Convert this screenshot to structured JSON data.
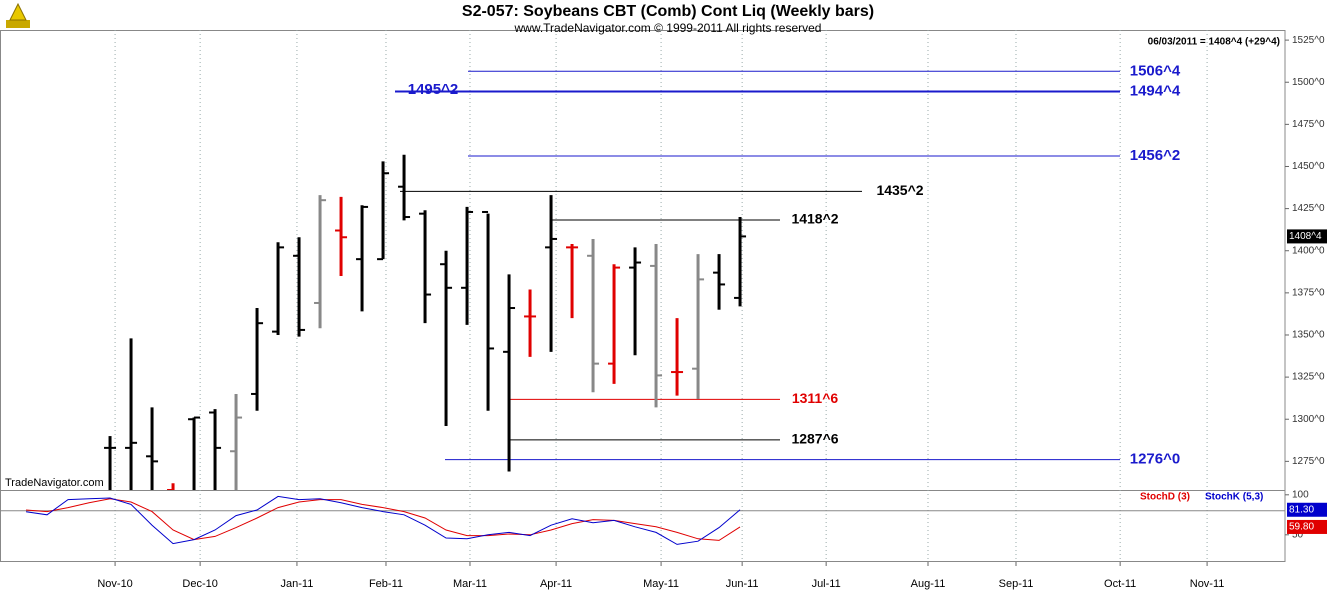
{
  "chart_data": {
    "type": "ohlc",
    "title": "S2-057:  Soybeans CBT (Comb) Cont Liq  (Weekly bars)",
    "subtitle": "www.TradeNavigator.com © 1999-2011 All rights reserved",
    "watermark": "TradeNavigator.com",
    "header_note": "06/03/2011 = 1408^4 (+29^4)",
    "categories": [
      null,
      null,
      null,
      null,
      null,
      null,
      null,
      null,
      null,
      null,
      null,
      null,
      null,
      null,
      null,
      null,
      null,
      null,
      null,
      null,
      null,
      null,
      null,
      null,
      null,
      null,
      null,
      null,
      null,
      null,
      null,
      null,
      null,
      null,
      null
    ],
    "open": [
      null,
      null,
      null,
      null,
      1283,
      1283,
      1278,
      1258,
      1300,
      1304,
      1281,
      1315,
      1352,
      1397,
      1369,
      1412,
      1395,
      1395,
      1438,
      1422,
      1392,
      1378,
      1423,
      1340,
      1361,
      1402,
      1402,
      1397,
      1333,
      1390,
      1391,
      1328,
      1330,
      1387,
      1372
    ],
    "high": [
      null,
      null,
      null,
      null,
      1290,
      1348,
      1307,
      1262,
      1301,
      1306,
      1315,
      1366,
      1405,
      1408,
      1433,
      1432,
      1427,
      1453,
      1457,
      1424,
      1400,
      1426,
      1422,
      1386,
      1377,
      1433,
      1404,
      1407,
      1392,
      1402,
      1404,
      1360,
      1398,
      1398,
      1420
    ],
    "low": [
      null,
      null,
      null,
      null,
      1255,
      1255,
      1255,
      1250,
      1255,
      1255,
      1255,
      1305,
      1350,
      1349,
      1354,
      1385,
      1364,
      1395,
      1418,
      1357,
      1296,
      1356,
      1305,
      1269,
      1337,
      1340,
      1360,
      1316,
      1321,
      1338,
      1307,
      1314,
      1312,
      1365,
      1367
    ],
    "close": [
      null,
      null,
      null,
      null,
      1283,
      1286,
      1275,
      1256,
      1301,
      1283,
      1301,
      1357,
      1402,
      1353,
      1430,
      1408,
      1426,
      1446,
      1420,
      1374,
      1378,
      1423,
      1342,
      1366,
      1361,
      1407,
      1402,
      1333,
      1390,
      1393,
      1326,
      1328,
      1383,
      1380,
      1408.5
    ],
    "bar_colors": [
      null,
      null,
      null,
      null,
      "#000000",
      "#000000",
      "#000000",
      "#e00000",
      "#000000",
      "#000000",
      "#888888",
      "#000000",
      "#000000",
      "#000000",
      "#888888",
      "#e00000",
      "#000000",
      "#000000",
      "#000000",
      "#000000",
      "#000000",
      "#000000",
      "#000000",
      "#000000",
      "#e00000",
      "#000000",
      "#e00000",
      "#888888",
      "#e00000",
      "#000000",
      "#888888",
      "#e00000",
      "#888888",
      "#000000",
      "#000000"
    ],
    "xlim": [
      -1.24,
      59.95
    ],
    "xticks": [
      {
        "value": 4.24,
        "label": "Nov-10"
      },
      {
        "value": 8.29,
        "label": "Dec-10"
      },
      {
        "value": 12.9,
        "label": "Jan-11"
      },
      {
        "value": 17.14,
        "label": "Feb-11"
      },
      {
        "value": 21.14,
        "label": "Mar-11"
      },
      {
        "value": 25.24,
        "label": "Apr-11"
      },
      {
        "value": 30.24,
        "label": "May-11"
      },
      {
        "value": 34.1,
        "label": "Jun-11"
      },
      {
        "value": 38.1,
        "label": "Jul-11"
      },
      {
        "value": 42.95,
        "label": "Aug-11"
      },
      {
        "value": 47.14,
        "label": "Sep-11"
      },
      {
        "value": 52.1,
        "label": "Oct-11"
      },
      {
        "value": 56.24,
        "label": "Nov-11"
      }
    ],
    "ylim": [
      1258,
      1531
    ],
    "yticks": [
      {
        "value": 1275,
        "label": "1275^0"
      },
      {
        "value": 1300,
        "label": "1300^0"
      },
      {
        "value": 1325,
        "label": "1325^0"
      },
      {
        "value": 1350,
        "label": "1350^0"
      },
      {
        "value": 1375,
        "label": "1375^0"
      },
      {
        "value": 1400,
        "label": "1400^0"
      },
      {
        "value": 1425,
        "label": "1425^0"
      },
      {
        "value": 1450,
        "label": "1450^0"
      },
      {
        "value": 1475,
        "label": "1475^0"
      },
      {
        "value": 1500,
        "label": "1500^0"
      },
      {
        "value": 1525,
        "label": "1525^0"
      }
    ],
    "levels": [
      {
        "value": 1506.5,
        "label": "1506^4",
        "color": "#1a1acc"
      },
      {
        "value": 1494.5,
        "label": "1494^4",
        "color": "#1a1acc"
      },
      {
        "value": 1456.25,
        "label": "1456^2",
        "color": "#1a1acc"
      },
      {
        "value": 1435.25,
        "label": "1435^2",
        "color": "#000000"
      },
      {
        "value": 1418.25,
        "label": "1418^2",
        "color": "#000000"
      },
      {
        "value": 1311.75,
        "label": "1311^6",
        "color": "#e00000"
      },
      {
        "value": 1287.75,
        "label": "1287^6",
        "color": "#000000"
      },
      {
        "value": 1276,
        "label": "1276^0",
        "color": "#1a1acc"
      }
    ],
    "notes": [
      {
        "value": 1495.25,
        "label": "1495^2",
        "color": "#1a1acc"
      }
    ],
    "last_price": {
      "value": 1408.5,
      "label": "1408^4"
    },
    "indicator": {
      "type": "line",
      "ylim": [
        16,
        106
      ],
      "yticks": [
        50,
        100
      ],
      "levels": [
        80
      ],
      "series": [
        {
          "name": "StochD (3)",
          "color": "#e00000",
          "last_label": "59.80",
          "values": [
            81,
            79,
            84,
            90,
            95,
            91,
            79,
            56,
            44,
            48,
            59,
            71,
            84,
            91,
            94,
            94,
            88,
            84,
            79,
            71,
            56,
            49,
            49,
            51,
            50,
            56,
            64,
            69,
            68,
            64,
            60,
            53,
            45,
            43,
            59.8
          ]
        },
        {
          "name": "StochK (5,3)",
          "color": "#0000cc",
          "last_label": "81.30",
          "values": [
            78.75,
            75,
            94,
            95,
            96,
            88,
            62,
            39,
            44,
            56,
            74,
            81,
            98,
            94,
            95,
            90,
            84,
            79,
            75,
            62,
            46,
            45,
            50,
            53,
            49,
            62,
            70,
            65,
            68,
            60,
            53,
            38,
            42,
            59,
            81.3
          ]
        }
      ]
    }
  }
}
